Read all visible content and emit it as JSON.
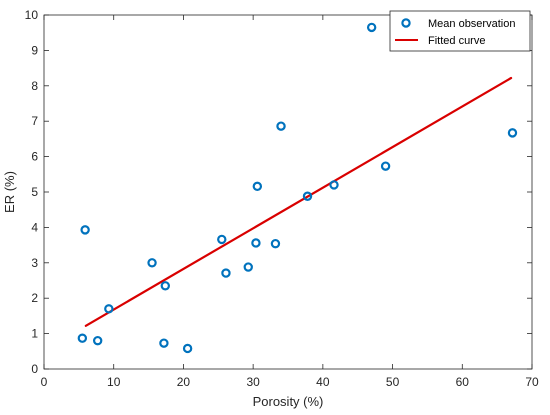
{
  "chart_data": {
    "type": "scatter",
    "xlabel": "Porosity (%)",
    "ylabel": "ER (%)",
    "xlim": [
      0,
      70
    ],
    "ylim": [
      0,
      10
    ],
    "xticks": [
      0,
      10,
      20,
      30,
      40,
      50,
      60,
      70
    ],
    "yticks": [
      0,
      1,
      2,
      3,
      4,
      5,
      6,
      7,
      8,
      9,
      10
    ],
    "grid": false,
    "legend_position": "top-right",
    "series": [
      {
        "name": "Mean observation",
        "kind": "scatter",
        "color": "#0072BD",
        "points": [
          [
            5.5,
            0.87
          ],
          [
            5.9,
            3.93
          ],
          [
            7.7,
            0.8
          ],
          [
            9.3,
            1.7
          ],
          [
            15.5,
            3.0
          ],
          [
            17.2,
            0.73
          ],
          [
            17.4,
            2.35
          ],
          [
            20.6,
            0.58
          ],
          [
            25.5,
            3.66
          ],
          [
            26.1,
            2.71
          ],
          [
            29.3,
            2.88
          ],
          [
            30.4,
            3.56
          ],
          [
            30.6,
            5.16
          ],
          [
            33.2,
            3.54
          ],
          [
            34.0,
            6.86
          ],
          [
            37.8,
            4.88
          ],
          [
            41.6,
            5.2
          ],
          [
            47.0,
            9.65
          ],
          [
            49.0,
            5.73
          ],
          [
            67.2,
            6.67
          ]
        ]
      },
      {
        "name": "Fitted curve",
        "kind": "line",
        "color": "#D90000",
        "points": [
          [
            6.0,
            1.22
          ],
          [
            67.0,
            8.22
          ]
        ]
      }
    ]
  }
}
